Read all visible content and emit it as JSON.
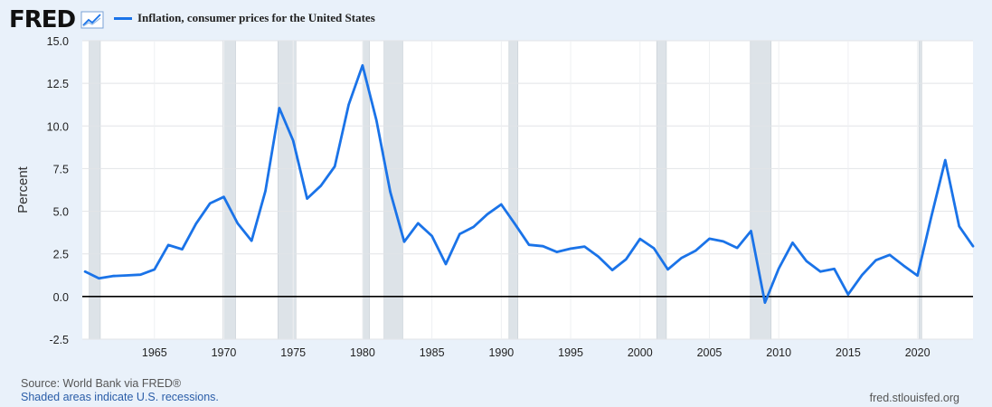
{
  "header": {
    "logo": "FRED",
    "logo_icon": "line-graph-icon"
  },
  "colors": {
    "series": "#1a73e8",
    "recession": "#dde3e8",
    "background": "#e9f1fa",
    "plot_bg": "#ffffff"
  },
  "chart_data": {
    "type": "line",
    "title": "",
    "series": [
      {
        "name": "Inflation, consumer prices for the United States",
        "x": [
          1960,
          1961,
          1962,
          1963,
          1964,
          1965,
          1966,
          1967,
          1968,
          1969,
          1970,
          1971,
          1972,
          1973,
          1974,
          1975,
          1976,
          1977,
          1978,
          1979,
          1980,
          1981,
          1982,
          1983,
          1984,
          1985,
          1986,
          1987,
          1988,
          1989,
          1990,
          1991,
          1992,
          1993,
          1994,
          1995,
          1996,
          1997,
          1998,
          1999,
          2000,
          2001,
          2002,
          2003,
          2004,
          2005,
          2006,
          2007,
          2008,
          2009,
          2010,
          2011,
          2012,
          2013,
          2014,
          2015,
          2016,
          2017,
          2018,
          2019,
          2020,
          2021,
          2022,
          2023,
          2024
        ],
        "values": [
          1.46,
          1.07,
          1.2,
          1.24,
          1.28,
          1.59,
          3.02,
          2.77,
          4.27,
          5.46,
          5.84,
          4.29,
          3.27,
          6.18,
          11.05,
          9.14,
          5.74,
          6.5,
          7.63,
          11.25,
          13.55,
          10.33,
          6.13,
          3.21,
          4.3,
          3.55,
          1.9,
          3.66,
          4.08,
          4.83,
          5.4,
          4.23,
          3.03,
          2.95,
          2.61,
          2.81,
          2.93,
          2.34,
          1.55,
          2.19,
          3.38,
          2.83,
          1.59,
          2.27,
          2.68,
          3.39,
          3.23,
          2.85,
          3.84,
          -0.36,
          1.64,
          3.16,
          2.07,
          1.46,
          1.62,
          0.12,
          1.26,
          2.13,
          2.44,
          1.81,
          1.23,
          4.7,
          8.0,
          4.12,
          2.95
        ]
      }
    ],
    "recessions": [
      [
        1960.3,
        1961.1
      ],
      [
        1969.95,
        1970.85
      ],
      [
        1973.9,
        1975.2
      ],
      [
        1980.0,
        1980.5
      ],
      [
        1981.55,
        1982.9
      ],
      [
        1990.55,
        1991.2
      ],
      [
        2001.2,
        2001.9
      ],
      [
        2007.95,
        2009.45
      ],
      [
        2020.1,
        2020.3
      ]
    ],
    "xlabel": "",
    "ylabel": "Percent",
    "xlim": [
      1959.8,
      2024.0
    ],
    "ylim": [
      -2.5,
      15.0
    ],
    "yticks": [
      -2.5,
      0.0,
      2.5,
      5.0,
      7.5,
      10.0,
      12.5,
      15.0
    ],
    "ytick_labels": [
      "-2.5",
      "0.0",
      "2.5",
      "5.0",
      "7.5",
      "10.0",
      "12.5",
      "15.0"
    ],
    "xticks": [
      1965,
      1970,
      1975,
      1980,
      1985,
      1990,
      1995,
      2000,
      2005,
      2010,
      2015,
      2020
    ],
    "xtick_labels": [
      "1965",
      "1970",
      "1975",
      "1980",
      "1985",
      "1990",
      "1995",
      "2000",
      "2005",
      "2010",
      "2015",
      "2020"
    ],
    "grid": true,
    "legend": "top-left"
  },
  "footer": {
    "source": "Source: World Bank via FRED®",
    "recession_note": "Shaded areas indicate U.S. recessions.",
    "site": "fred.stlouisfed.org"
  }
}
